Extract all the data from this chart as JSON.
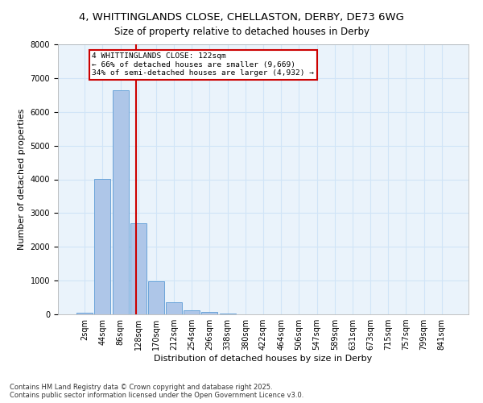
{
  "title1": "4, WHITTINGLANDS CLOSE, CHELLASTON, DERBY, DE73 6WG",
  "title2": "Size of property relative to detached houses in Derby",
  "xlabel": "Distribution of detached houses by size in Derby",
  "ylabel": "Number of detached properties",
  "categories": [
    "2sqm",
    "44sqm",
    "86sqm",
    "128sqm",
    "170sqm",
    "212sqm",
    "254sqm",
    "296sqm",
    "338sqm",
    "380sqm",
    "422sqm",
    "464sqm",
    "506sqm",
    "547sqm",
    "589sqm",
    "631sqm",
    "673sqm",
    "715sqm",
    "757sqm",
    "799sqm",
    "841sqm"
  ],
  "values": [
    50,
    4010,
    6650,
    2700,
    975,
    350,
    120,
    80,
    30,
    0,
    0,
    0,
    0,
    0,
    0,
    0,
    0,
    0,
    0,
    0,
    0
  ],
  "bar_color": "#aec6e8",
  "bar_edge_color": "#5b9bd5",
  "grid_color": "#d0e4f7",
  "background_color": "#eaf3fb",
  "vline_color": "#cc0000",
  "annotation_text": "4 WHITTINGLANDS CLOSE: 122sqm\n← 66% of detached houses are smaller (9,669)\n34% of semi-detached houses are larger (4,932) →",
  "annotation_box_color": "#ffffff",
  "annotation_box_edge_color": "#cc0000",
  "ylim": [
    0,
    8000
  ],
  "yticks": [
    0,
    1000,
    2000,
    3000,
    4000,
    5000,
    6000,
    7000,
    8000
  ],
  "footer": "Contains HM Land Registry data © Crown copyright and database right 2025.\nContains public sector information licensed under the Open Government Licence v3.0.",
  "title_fontsize": 9.5,
  "subtitle_fontsize": 8.5,
  "axis_label_fontsize": 8,
  "tick_fontsize": 7,
  "footer_fontsize": 6
}
